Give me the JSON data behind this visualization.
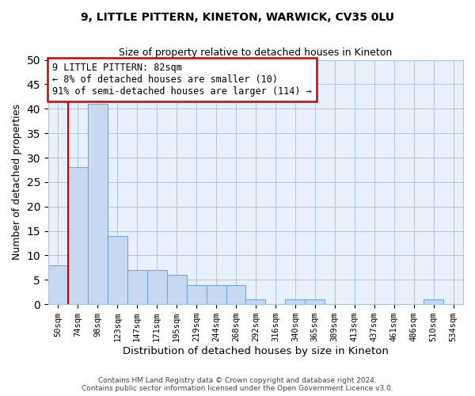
{
  "title": "9, LITTLE PITTERN, KINETON, WARWICK, CV35 0LU",
  "subtitle": "Size of property relative to detached houses in Kineton",
  "xlabel": "Distribution of detached houses by size in Kineton",
  "ylabel": "Number of detached properties",
  "bar_labels": [
    "50sqm",
    "74sqm",
    "98sqm",
    "123sqm",
    "147sqm",
    "171sqm",
    "195sqm",
    "219sqm",
    "244sqm",
    "268sqm",
    "292sqm",
    "316sqm",
    "340sqm",
    "365sqm",
    "389sqm",
    "413sqm",
    "437sqm",
    "461sqm",
    "486sqm",
    "510sqm",
    "534sqm"
  ],
  "bar_values": [
    8,
    28,
    41,
    14,
    7,
    7,
    6,
    4,
    4,
    4,
    1,
    0,
    1,
    1,
    0,
    0,
    0,
    0,
    0,
    1,
    0
  ],
  "bar_color": "#c6d9f0",
  "bar_edge_color": "#7ba7d4",
  "vline_color": "#cc0000",
  "annotation_title": "9 LITTLE PITTERN: 82sqm",
  "annotation_line1": "← 8% of detached houses are smaller (10)",
  "annotation_line2": "91% of semi-detached houses are larger (114) →",
  "annotation_box_color": "#ffffff",
  "annotation_box_edge": "#cc0000",
  "ylim": [
    0,
    50
  ],
  "yticks": [
    0,
    5,
    10,
    15,
    20,
    25,
    30,
    35,
    40,
    45,
    50
  ],
  "footer1": "Contains HM Land Registry data © Crown copyright and database right 2024.",
  "footer2": "Contains public sector information licensed under the Open Government Licence v3.0.",
  "bg_color": "#ffffff",
  "plot_bg_color": "#e8f0fb",
  "grid_color": "#b0c4de"
}
